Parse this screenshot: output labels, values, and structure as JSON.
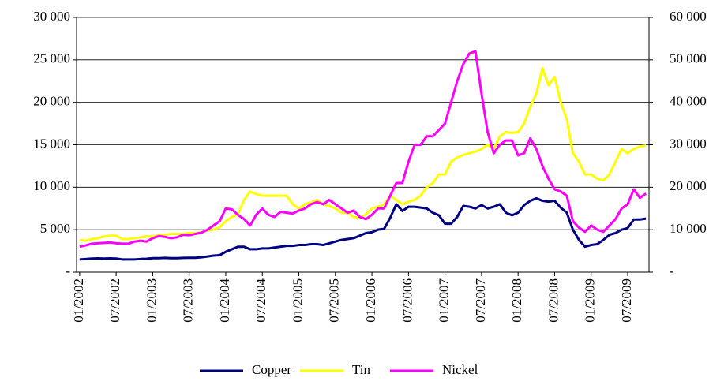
{
  "chart_data": {
    "type": "line",
    "categories": [
      "01/2002",
      null,
      null,
      null,
      null,
      null,
      "07/2002",
      null,
      null,
      null,
      null,
      null,
      "01/2003",
      null,
      null,
      null,
      null,
      null,
      "07/2003",
      null,
      null,
      null,
      null,
      null,
      "01/2004",
      null,
      null,
      null,
      null,
      null,
      "07/2004",
      null,
      null,
      null,
      null,
      null,
      "01/2005",
      null,
      null,
      null,
      null,
      null,
      "07/2005",
      null,
      null,
      null,
      null,
      null,
      "01/2006",
      null,
      null,
      null,
      null,
      null,
      "07/2006",
      null,
      null,
      null,
      null,
      null,
      "01/2007",
      null,
      null,
      null,
      null,
      null,
      "07/2007",
      null,
      null,
      null,
      null,
      null,
      "01/2008",
      null,
      null,
      null,
      null,
      null,
      "07/2008",
      null,
      null,
      null,
      null,
      null,
      "01/2009",
      null,
      null,
      null,
      null,
      null,
      "07/2009",
      null,
      null,
      null
    ],
    "series": [
      {
        "name": "Copper",
        "color": "#000080",
        "values": [
          1500,
          1550,
          1600,
          1620,
          1600,
          1620,
          1600,
          1500,
          1500,
          1500,
          1550,
          1580,
          1650,
          1650,
          1680,
          1650,
          1650,
          1680,
          1700,
          1700,
          1750,
          1850,
          1950,
          2000,
          2400,
          2700,
          3000,
          3000,
          2700,
          2700,
          2800,
          2800,
          2900,
          3000,
          3100,
          3100,
          3200,
          3200,
          3300,
          3300,
          3200,
          3400,
          3600,
          3800,
          3900,
          4000,
          4300,
          4600,
          4700,
          5000,
          5100,
          6400,
          8000,
          7200,
          7700,
          7700,
          7600,
          7500,
          7000,
          6700,
          5700,
          5700,
          6500,
          7800,
          7700,
          7500,
          7900,
          7500,
          7700,
          8000,
          7000,
          6700,
          7000,
          7900,
          8400,
          8700,
          8400,
          8300,
          8400,
          7600,
          7000,
          5000,
          3800,
          3000,
          3200,
          3300,
          3800,
          4400,
          4600,
          5000,
          5200,
          6200,
          6200,
          6300
        ]
      },
      {
        "name": "Tin",
        "color": "#ffff00",
        "values": [
          3800,
          3700,
          3900,
          4000,
          4200,
          4300,
          4300,
          3900,
          3900,
          4000,
          4100,
          4200,
          4200,
          4400,
          4400,
          4500,
          4500,
          4500,
          4600,
          4600,
          4700,
          4900,
          5000,
          5300,
          6000,
          6500,
          6800,
          8500,
          9500,
          9200,
          9000,
          9000,
          9000,
          9000,
          9000,
          8000,
          7500,
          8000,
          8200,
          8500,
          8000,
          7800,
          7500,
          7000,
          7000,
          6500,
          6400,
          6800,
          7500,
          7700,
          8000,
          9000,
          8500,
          8000,
          8300,
          8500,
          9000,
          10000,
          10500,
          11500,
          11500,
          13000,
          13500,
          13800,
          14000,
          14200,
          14500,
          15000,
          14500,
          16000,
          16500,
          16400,
          16500,
          17500,
          19500,
          21000,
          24000,
          22000,
          23000,
          20000,
          18000,
          14000,
          13000,
          11500,
          11500,
          11000,
          10800,
          11500,
          13000,
          14500,
          14000,
          14500,
          14800,
          14900
        ]
      },
      {
        "name": "Nickel",
        "color": "#ff00ff",
        "axis": "y2",
        "values": [
          6000,
          6300,
          6700,
          6800,
          6900,
          7000,
          6800,
          6700,
          6700,
          7200,
          7400,
          7200,
          8000,
          8500,
          8300,
          8000,
          8200,
          8800,
          8700,
          9000,
          9300,
          10000,
          11000,
          12000,
          15000,
          14800,
          13500,
          12500,
          11000,
          13500,
          15000,
          13500,
          13000,
          14200,
          14000,
          13800,
          14500,
          15000,
          16000,
          16500,
          16000,
          17000,
          16000,
          15000,
          14000,
          14500,
          13000,
          12500,
          13500,
          15000,
          15000,
          18000,
          21000,
          21000,
          26000,
          30000,
          30000,
          32000,
          32000,
          33500,
          35000,
          40000,
          45000,
          49000,
          51500,
          52000,
          42000,
          33000,
          28000,
          30000,
          31000,
          31000,
          27500,
          28000,
          31500,
          29000,
          25000,
          22000,
          19500,
          19000,
          18000,
          12000,
          10500,
          9500,
          11000,
          10000,
          9500,
          11000,
          12500,
          15000,
          16000,
          19500,
          17500,
          18500
        ]
      }
    ],
    "ylim": [
      0,
      30000
    ],
    "yticks": [
      {
        "value": 0,
        "label": "-"
      },
      {
        "value": 5000,
        "label": "5 000"
      },
      {
        "value": 10000,
        "label": "10 000"
      },
      {
        "value": 15000,
        "label": "15 000"
      },
      {
        "value": 20000,
        "label": "20 000"
      },
      {
        "value": 25000,
        "label": "25 000"
      },
      {
        "value": 30000,
        "label": "30 000"
      }
    ],
    "y2lim": [
      0,
      60000
    ],
    "y2ticks": [
      {
        "value": 0,
        "label": "-"
      },
      {
        "value": 10000,
        "label": "10 000"
      },
      {
        "value": 20000,
        "label": "20 000"
      },
      {
        "value": 30000,
        "label": "30 000"
      },
      {
        "value": 40000,
        "label": "40 000"
      },
      {
        "value": 50000,
        "label": "50 000"
      },
      {
        "value": 60000,
        "label": "60 000"
      }
    ],
    "grid": true,
    "legend": "bottom"
  }
}
